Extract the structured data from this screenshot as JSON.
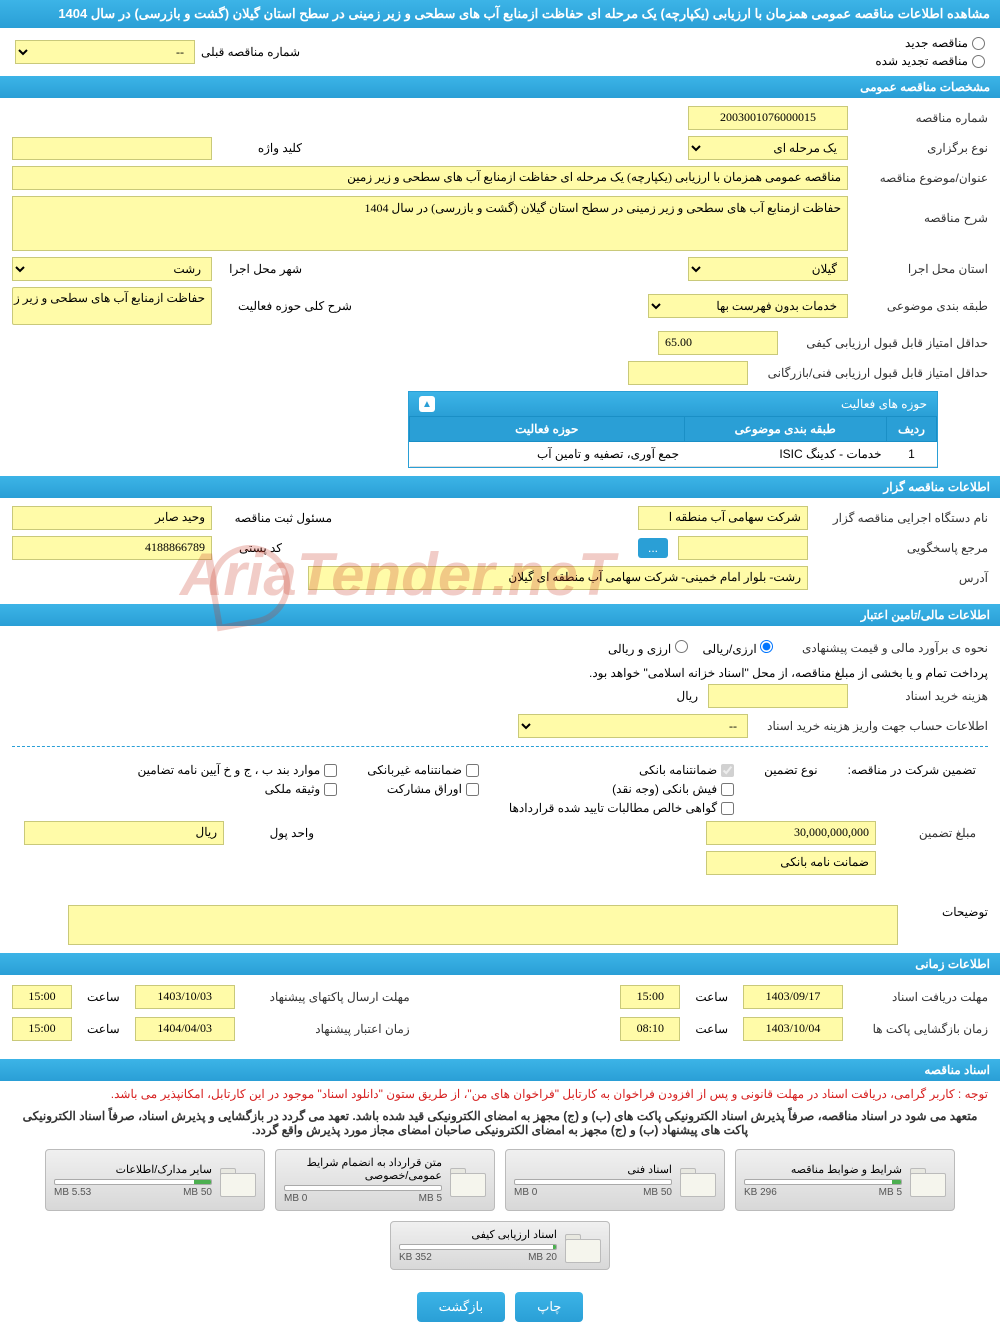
{
  "page_title": "مشاهده اطلاعات مناقصه عمومی همزمان با ارزیابی (یکپارچه) یک مرحله ای حفاظت ازمنابع آب های سطحی و زیر زمینی در سطح استان گیلان (گشت و بازرسی) در سال 1404",
  "radio": {
    "new_tender": "مناقصه جدید",
    "renewed_tender": "مناقصه تجدید شده",
    "prev_label": "شماره مناقصه قبلی",
    "prev_value": "--"
  },
  "section_general": "مشخصات مناقصه عمومی",
  "general": {
    "tender_no_label": "شماره مناقصه",
    "tender_no": "2003001076000015",
    "type_label": "نوع برگزاری",
    "type_value": "یک مرحله ای",
    "keyword_label": "کلید واژه",
    "keyword": "",
    "title_label": "عنوان/موضوع مناقصه",
    "title_value": "مناقصه عمومی همزمان با ارزیابی (یکپارچه) یک مرحله ای حفاظت ازمنابع آب های سطحی و زیر زمین",
    "desc_label": "شرح مناقصه",
    "desc_value": "حفاظت ازمنابع آب های سطحی و زیر زمینی در سطح استان گیلان (گشت و بازرسی) در سال 1404",
    "province_label": "استان محل اجرا",
    "province": "گیلان",
    "city_label": "شهر محل اجرا",
    "city": "رشت",
    "category_label": "طبقه بندی موضوعی",
    "category": "خدمات بدون فهرست بها",
    "activity_desc_label": "شرح کلی حوزه فعالیت",
    "activity_desc": "حفاظت ازمنابع آب های سطحی و زیر زمینی در",
    "min_quality_label": "حداقل امتیاز قابل قبول ارزیابی کیفی",
    "min_quality": "65.00",
    "min_tech_label": "حداقل امتیاز قابل قبول ارزیابی فنی/بازرگانی",
    "min_tech": ""
  },
  "activity_panel": {
    "title": "حوزه های فعالیت",
    "col_row": "ردیف",
    "col_category": "طبقه بندی موضوعی",
    "col_domain": "حوزه فعالیت",
    "row_no": "1",
    "row_cat": "خدمات - کدینگ ISIC",
    "row_domain": "جمع آوری، تصفیه و تامین آب"
  },
  "section_owner": "اطلاعات مناقصه گزار",
  "owner": {
    "org_label": "نام دستگاه اجرایی مناقصه گزار",
    "org": "شرکت سهامی آب منطقه ا",
    "registrar_label": "مسئول ثبت مناقصه",
    "registrar": "وحید صابر",
    "response_label": "مرجع پاسخگویی",
    "postal_label": "کد پستی",
    "postal": "4188866789",
    "address_label": "آدرس",
    "address": "رشت- بلوار امام خمینی- شرکت سهامی آب منطقه ای گیلان"
  },
  "section_finance": "اطلاعات مالی/تامین اعتبار",
  "finance": {
    "estimate_label": "نحوه ی برآورد مالی و قیمت پیشنهادی",
    "rial_option": "ارزی/ریالی",
    "currency_option": "ارزی و ریالی",
    "payment_note": "پرداخت تمام و یا بخشی از مبلغ مناقصه، از محل \"اسناد خزانه اسلامی\" خواهد بود.",
    "doc_cost_label": "هزینه خرید اسناد",
    "doc_cost_unit": "ریال",
    "account_label": "اطلاعات حساب جهت واریز هزینه خرید اسناد",
    "account_value": "--"
  },
  "guarantee": {
    "participate_label": "تضمین شرکت در مناقصه:",
    "type_label": "نوع تضمین",
    "bank_guarantee": "ضمانتنامه بانکی",
    "nonbank_guarantee": "ضمانتنامه غیربانکی",
    "items_b": "موارد بند ب ، ج و خ آیین نامه تضامین",
    "bank_receipt": "فیش بانکی (وجه نقد)",
    "participation_bonds": "اوراق مشارکت",
    "property_deed": "وثیقه ملکی",
    "net_claims": "گواهی خالص مطالبات تایید شده قراردادها",
    "amount_label": "مبلغ تضمین",
    "amount": "30,000,000,000",
    "unit_label": "واحد پول",
    "unit": "ریال",
    "bank_letter": "ضمانت نامه بانکی",
    "notes_label": "توضیحات"
  },
  "section_time": "اطلاعات زمانی",
  "time": {
    "receive_label": "مهلت دریافت اسناد",
    "receive_date": "1403/09/17",
    "receive_hour_label": "ساعت",
    "receive_hour": "15:00",
    "send_label": "مهلت ارسال پاکتهای پیشنهاد",
    "send_date": "1403/10/03",
    "send_hour": "15:00",
    "open_label": "زمان بازگشایی پاکت ها",
    "open_date": "1403/10/04",
    "open_hour": "08:10",
    "validity_label": "زمان اعتبار پیشنهاد",
    "validity_date": "1404/04/03",
    "validity_hour": "15:00"
  },
  "section_docs": "اسناد مناقصه",
  "docs_notice": "توجه : کاربر گرامی، دریافت اسناد در مهلت قانونی و پس از افزودن فراخوان به کارتابل \"فراخوان های من\"، از طریق ستون \"دانلود اسناد\" موجود در این کارتابل، امکانپذیر می باشد.",
  "docs_notice2": "متعهد می شود در اسناد مناقصه، صرفاً پذیرش اسناد الکترونیکی پاکت های (ب) و (ج) مجهز به امضای الکترونیکی قید شده باشد. تعهد می گردد در بازگشایی و پذیرش اسناد، صرفاً اسناد الکترونیکی پاکت های پیشنهاد (ب) و (ج) مجهز به امضای الکترونیکی صاحبان امضای مجاز مورد پذیرش واقع گردد.",
  "doc_cards": [
    {
      "title": "شرایط و ضوابط مناقصه",
      "used": "296 KB",
      "total": "5 MB",
      "pct": 6
    },
    {
      "title": "اسناد فنی",
      "used": "0 MB",
      "total": "50 MB",
      "pct": 0
    },
    {
      "title": "متن قرارداد به انضمام شرایط عمومی/خصوصی",
      "used": "0 MB",
      "total": "5 MB",
      "pct": 0
    },
    {
      "title": "سایر مدارک/اطلاعات",
      "used": "5.53 MB",
      "total": "50 MB",
      "pct": 11
    },
    {
      "title": "اسناد ارزیابی کیفی",
      "used": "352 KB",
      "total": "20 MB",
      "pct": 2
    }
  ],
  "buttons": {
    "print": "چاپ",
    "back": "بازگشت"
  },
  "watermark": "AriaTender.neT"
}
